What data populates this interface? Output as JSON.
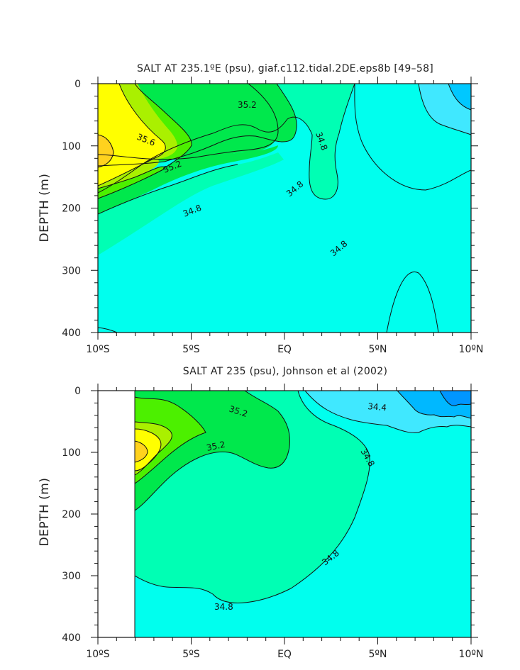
{
  "chart_data": [
    {
      "type": "contour",
      "title": "SALT AT 235.1ºE (psu), giaf.c112.tidal.2DE.eps8b [49–58]",
      "ylabel": "DEPTH (m)",
      "xlim": [
        -10,
        10
      ],
      "ylim": [
        0,
        400
      ],
      "y_inverted": true,
      "x_ticks": [
        {
          "value": -10,
          "label": "10ºS"
        },
        {
          "value": -5,
          "label": "5ºS"
        },
        {
          "value": 0,
          "label": "EQ"
        },
        {
          "value": 5,
          "label": "5ºN"
        },
        {
          "value": 10,
          "label": "10ºN"
        }
      ],
      "y_ticks": [
        {
          "value": 0,
          "label": "0"
        },
        {
          "value": 100,
          "label": "100"
        },
        {
          "value": 200,
          "label": "200"
        },
        {
          "value": 300,
          "label": "300"
        },
        {
          "value": 400,
          "label": "400"
        }
      ],
      "levels": [
        34.4,
        34.6,
        34.8,
        35.0,
        35.2,
        35.4,
        35.6,
        35.8
      ],
      "fill_colors": {
        "below_34.4": "#00c8ff",
        "34.4_34.6": "#40e8ff",
        "34.6_34.8": "#00ffee",
        "34.8_35.0": "#00ffb4",
        "35.0_35.2": "#00e84c",
        "35.2_35.4": "#4cf000",
        "35.4_35.6": "#aaf000",
        "35.6_35.8": "#ffff00",
        "above_35.8": "#ffd21e"
      },
      "contour_labels": [
        {
          "text": "35.2",
          "x": -0.3,
          "y": 64
        },
        {
          "text": "35.6",
          "x": -7.5,
          "y": 85
        },
        {
          "text": "35.2",
          "x": -5.5,
          "y": 133
        },
        {
          "text": "34.8",
          "x": 2.3,
          "y": 95
        },
        {
          "text": "34.8",
          "x": 0.4,
          "y": 172
        },
        {
          "text": "34.8",
          "x": -4.9,
          "y": 202
        },
        {
          "text": "34.8",
          "x": 3.1,
          "y": 262
        }
      ]
    },
    {
      "type": "contour",
      "title": "SALT AT 235 (psu), Johnson et al (2002)",
      "ylabel": "DEPTH (m)",
      "xlim": [
        -10,
        10
      ],
      "ylim": [
        0,
        400
      ],
      "y_inverted": true,
      "data_xlim": [
        -8,
        10
      ],
      "x_ticks": [
        {
          "value": -10,
          "label": "10ºS"
        },
        {
          "value": -5,
          "label": "5ºS"
        },
        {
          "value": 0,
          "label": "EQ"
        },
        {
          "value": 5,
          "label": "5ºN"
        },
        {
          "value": 10,
          "label": "10ºN"
        }
      ],
      "y_ticks": [
        {
          "value": 0,
          "label": "0"
        },
        {
          "value": 100,
          "label": "100"
        },
        {
          "value": 200,
          "label": "200"
        },
        {
          "value": 300,
          "label": "300"
        },
        {
          "value": 400,
          "label": "400"
        }
      ],
      "levels": [
        34.0,
        34.2,
        34.4,
        34.6,
        34.8,
        35.0,
        35.2,
        35.4,
        35.6,
        35.8
      ],
      "fill_colors": {
        "below_34.2": "#0096ff",
        "34.2_34.4": "#00b8ff",
        "34.4_34.6": "#40e8ff",
        "34.6_34.8": "#00ffee",
        "34.8_35.0": "#00ffb4",
        "35.0_35.2": "#00e84c",
        "35.2_35.4": "#4cf000",
        "35.4_35.6": "#aaf000",
        "35.6_35.8": "#ffff00",
        "above_35.8": "#ffd21e"
      },
      "contour_labels": [
        {
          "text": "35.2",
          "x": -2.4,
          "y": 36
        },
        {
          "text": "34.4",
          "x": 5.1,
          "y": 28
        },
        {
          "text": "35.2",
          "x": -3.5,
          "y": 88
        },
        {
          "text": "34.8",
          "x": 4.5,
          "y": 106
        },
        {
          "text": "34.8",
          "x": 2.7,
          "y": 275
        },
        {
          "text": "34.8",
          "x": -3.1,
          "y": 350
        }
      ]
    }
  ]
}
